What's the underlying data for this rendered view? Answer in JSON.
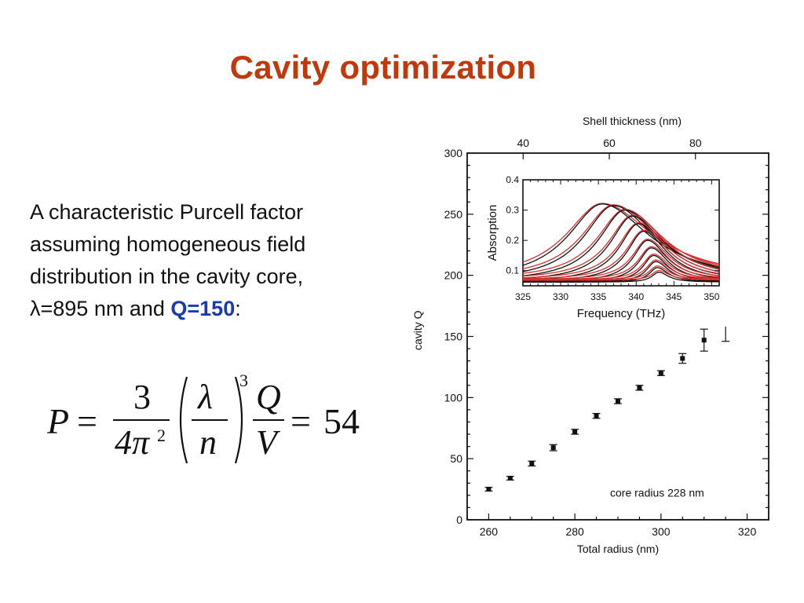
{
  "slide": {
    "title": "Cavity optimization",
    "text_line1": "A characteristic Purcell factor",
    "text_line2": "assuming homogeneous field",
    "text_line3": "distribution in the cavity core,",
    "lambda_symbol": "λ",
    "lambda_text": "=895 nm and ",
    "q_highlight": "Q=150",
    "colon": ":",
    "highlight_color": "#1a3caa",
    "title_color": "#c1390b"
  },
  "formula": {
    "P": "P",
    "eq1": "=",
    "num3": "3",
    "den": "4π",
    "den_exp": "2",
    "lambda": "λ",
    "n": "n",
    "outer_exp": "3",
    "Q": "Q",
    "V": "V",
    "eq2": "=",
    "result": "54"
  },
  "chart_data": [
    {
      "type": "scatter",
      "xlabel": "Total radius (nm)",
      "ylabel": "cavity Q",
      "x2label": "Shell thickness (nm)",
      "xlim": [
        255,
        325
      ],
      "ylim": [
        0,
        300
      ],
      "x_ticks": [
        260,
        280,
        300,
        320
      ],
      "y_ticks": [
        0,
        50,
        100,
        150,
        200,
        250,
        300
      ],
      "x2_ticks": [
        {
          "label": "40",
          "x": 268
        },
        {
          "label": "60",
          "x": 288
        },
        {
          "label": "80",
          "x": 308
        }
      ],
      "annotation": "core radius 228 nm",
      "grid": false,
      "points": [
        {
          "x": 260,
          "y": 25,
          "err": 1.5
        },
        {
          "x": 265,
          "y": 34,
          "err": 1.5
        },
        {
          "x": 270,
          "y": 46,
          "err": 2
        },
        {
          "x": 275,
          "y": 59,
          "err": 2.5
        },
        {
          "x": 280,
          "y": 72,
          "err": 2
        },
        {
          "x": 285,
          "y": 85,
          "err": 2
        },
        {
          "x": 290,
          "y": 97,
          "err": 2
        },
        {
          "x": 295,
          "y": 108,
          "err": 2
        },
        {
          "x": 300,
          "y": 120,
          "err": 2
        },
        {
          "x": 305,
          "y": 132,
          "err": 4
        },
        {
          "x": 310,
          "y": 147,
          "err": 9
        },
        {
          "x": 315,
          "y": 165,
          "err": 19
        }
      ]
    },
    {
      "type": "line",
      "xlabel": "Frequency (THz)",
      "ylabel": "Absorption",
      "xlim": [
        325,
        351
      ],
      "ylim": [
        0.05,
        0.4
      ],
      "x_ticks": [
        325,
        330,
        335,
        340,
        345,
        350
      ],
      "y_ticks": [
        0.1,
        0.2,
        0.3,
        0.4
      ],
      "grid": false,
      "colors": {
        "measured": "#111111",
        "fit": "#d93030"
      },
      "peaks": [
        {
          "center": 335.5,
          "height": 0.32,
          "width": 5.5
        },
        {
          "center": 337.0,
          "height": 0.315,
          "width": 4.8
        },
        {
          "center": 338.5,
          "height": 0.3,
          "width": 4.2
        },
        {
          "center": 339.5,
          "height": 0.28,
          "width": 3.6
        },
        {
          "center": 340.3,
          "height": 0.255,
          "width": 3.1
        },
        {
          "center": 341.0,
          "height": 0.23,
          "width": 2.7
        },
        {
          "center": 341.5,
          "height": 0.2,
          "width": 2.3
        },
        {
          "center": 342.0,
          "height": 0.175,
          "width": 2.0
        },
        {
          "center": 342.3,
          "height": 0.15,
          "width": 1.7
        },
        {
          "center": 342.6,
          "height": 0.13,
          "width": 1.5
        },
        {
          "center": 342.8,
          "height": 0.11,
          "width": 1.3
        },
        {
          "center": 343.0,
          "height": 0.095,
          "width": 1.1
        }
      ]
    }
  ]
}
